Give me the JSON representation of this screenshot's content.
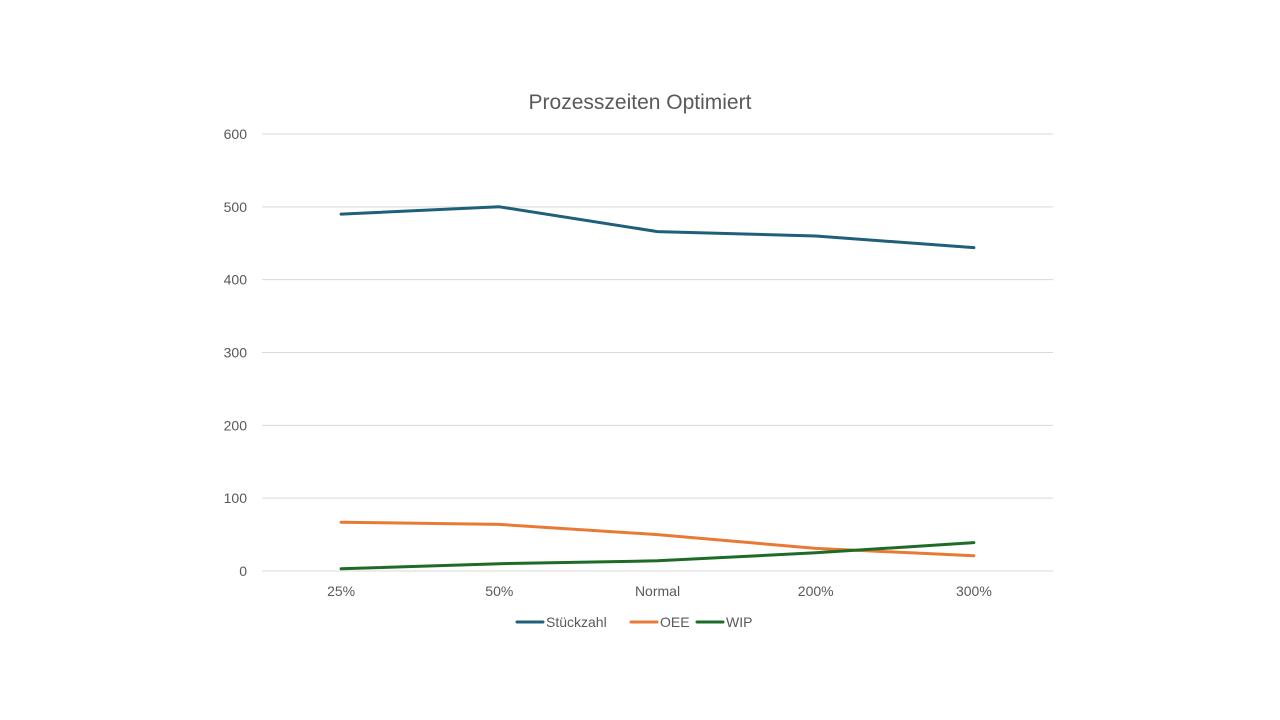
{
  "chart_data": {
    "type": "line",
    "title": "Prozesszeiten Optimiert",
    "xlabel": "",
    "ylabel": "",
    "categories": [
      "25%",
      "50%",
      "Normal",
      "200%",
      "300%"
    ],
    "ylim": [
      0,
      600
    ],
    "yticks": [
      0,
      100,
      200,
      300,
      400,
      500,
      600
    ],
    "grid": true,
    "legend_position": "bottom",
    "series": [
      {
        "name": "Stückzahl",
        "color": "#1f5f7a",
        "values": [
          490,
          500,
          466,
          460,
          444
        ]
      },
      {
        "name": "OEE",
        "color": "#e97a35",
        "values": [
          67,
          64,
          50,
          31,
          21
        ]
      },
      {
        "name": "WIP",
        "color": "#1e6b27",
        "values": [
          3,
          10,
          14,
          25,
          39
        ]
      }
    ]
  }
}
